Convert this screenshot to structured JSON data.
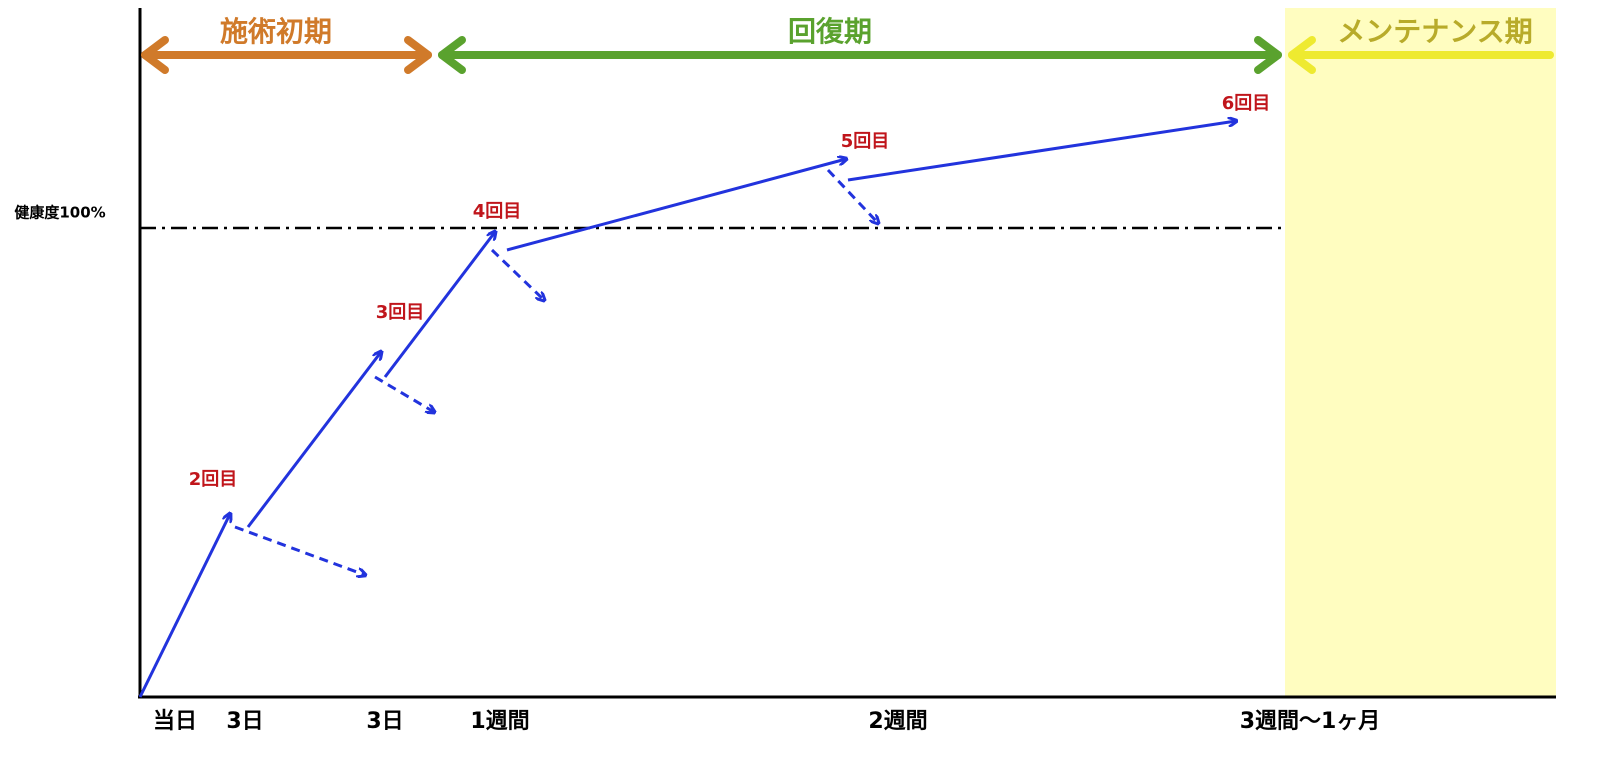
{
  "phases": [
    {
      "label": "施術初期"
    },
    {
      "label": "回復期"
    },
    {
      "label": "メンテナンス期"
    }
  ],
  "y_axis": {
    "label": "健康度100%"
  },
  "x_axis": {
    "labels": [
      "当日",
      "3日",
      "3日",
      "1週間",
      "2週間",
      "3週間〜1ヶ月"
    ]
  },
  "sessions": [
    {
      "label": "2回目"
    },
    {
      "label": "3回目"
    },
    {
      "label": "4回目"
    },
    {
      "label": "5回目"
    },
    {
      "label": "6回目"
    }
  ]
}
